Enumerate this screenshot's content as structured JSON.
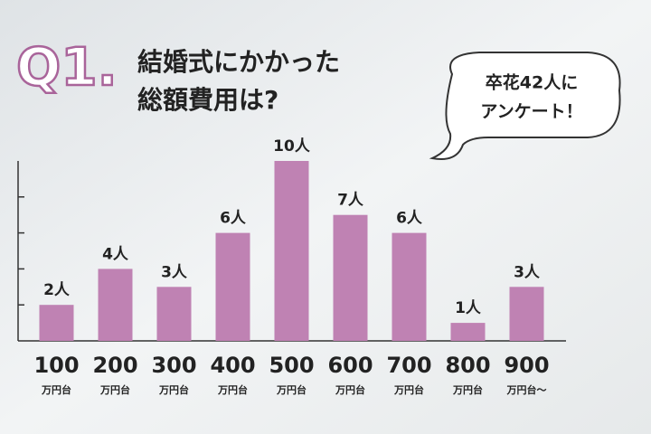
{
  "chart_data": {
    "type": "bar",
    "question_number": "Q1.",
    "title": [
      "結婚式にかかった",
      "総額費用は?"
    ],
    "callout": [
      "卒花42人に",
      "アンケート！"
    ],
    "categories": [
      "100",
      "200",
      "300",
      "400",
      "500",
      "600",
      "700",
      "800",
      "900"
    ],
    "category_units": [
      "万円台",
      "万円台",
      "万円台",
      "万円台",
      "万円台",
      "万円台",
      "万円台",
      "万円台",
      "万円台〜"
    ],
    "values": [
      2,
      4,
      3,
      6,
      10,
      7,
      6,
      1,
      3
    ],
    "value_labels": [
      "2人",
      "4人",
      "3人",
      "6人",
      "10人",
      "7人",
      "6人",
      "1人",
      "3人"
    ],
    "color": "#bf82b3",
    "ylim": [
      0,
      10
    ],
    "yticks": [
      2,
      4,
      6,
      8
    ]
  }
}
